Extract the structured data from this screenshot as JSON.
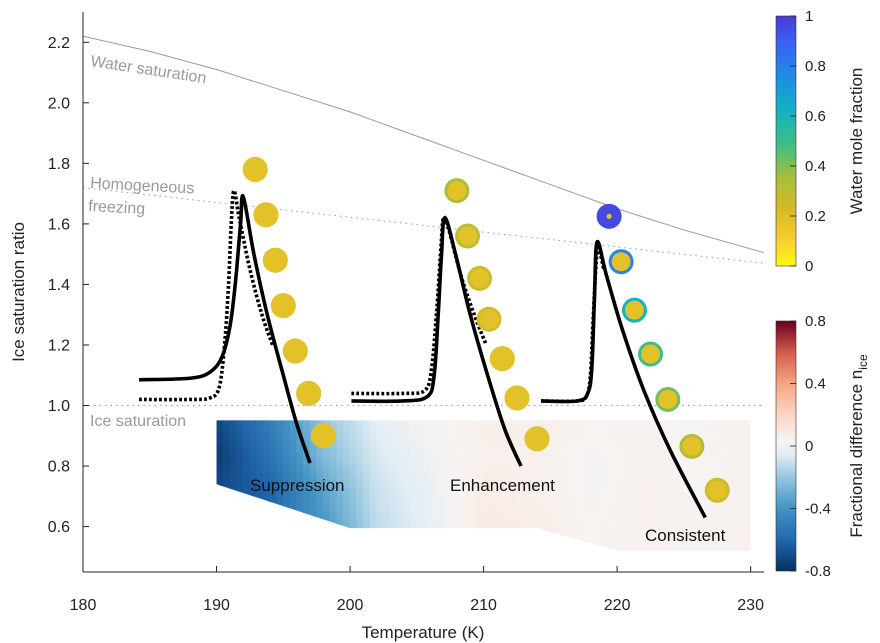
{
  "chart_data": {
    "type": "scatter",
    "xlabel": "Temperature (K)",
    "ylabel": "Ice saturation ratio",
    "xlim": [
      180,
      231
    ],
    "ylim": [
      0.45,
      2.3
    ],
    "x_ticks": [
      180,
      190,
      200,
      210,
      220,
      230
    ],
    "x_tick_labels": [
      "180",
      "190",
      "200",
      "210",
      "220",
      "230"
    ],
    "y_ticks": [
      0.6,
      0.8,
      1.0,
      1.2,
      1.4,
      1.6,
      1.8,
      2.0,
      2.2
    ],
    "y_tick_labels": [
      "0.6",
      "0.8",
      "1.0",
      "1.2",
      "1.4",
      "1.6",
      "1.8",
      "2.0",
      "2.2"
    ],
    "grid": false,
    "reference_lines": [
      {
        "label": "Water saturation",
        "points": [
          [
            180,
            2.22
          ],
          [
            185,
            2.17
          ],
          [
            190,
            2.11
          ],
          [
            195,
            2.04
          ],
          [
            200,
            1.97
          ],
          [
            205,
            1.89
          ],
          [
            210,
            1.81
          ],
          [
            215,
            1.73
          ],
          [
            220,
            1.65
          ],
          [
            225,
            1.58
          ],
          [
            231,
            1.505
          ]
        ]
      },
      {
        "label_lines": [
          "Homogeneous",
          "freezing"
        ],
        "points": [
          [
            180,
            1.72
          ],
          [
            231,
            1.47
          ]
        ]
      },
      {
        "label": "Ice saturation",
        "points": [
          [
            180,
            1.0
          ],
          [
            231,
            1.0
          ]
        ]
      }
    ],
    "annotations": [
      "Suppression",
      "Enhancement",
      "Consistent"
    ],
    "series": [
      {
        "name": "",
        "style": "solid",
        "x": [
          184.2,
          188,
          189.5,
          190.4,
          191.0,
          191.4,
          191.8,
          192.0,
          192.8,
          193.8,
          195.0,
          196.0,
          197.0
        ],
        "y": [
          1.085,
          1.09,
          1.11,
          1.16,
          1.26,
          1.4,
          1.6,
          1.69,
          1.5,
          1.3,
          1.1,
          0.94,
          0.81
        ]
      },
      {
        "name": "",
        "style": "dotted",
        "x": [
          184.2,
          188,
          189.5,
          190.2,
          190.6,
          190.9,
          191.1,
          191.3,
          191.7,
          192.5,
          193.4,
          194.2
        ],
        "y": [
          1.02,
          1.02,
          1.025,
          1.06,
          1.2,
          1.4,
          1.6,
          1.71,
          1.62,
          1.45,
          1.3,
          1.2
        ]
      },
      {
        "name": "",
        "style": "solid",
        "x": [
          200.1,
          204,
          205.8,
          206.3,
          206.6,
          206.85,
          207.1,
          207.9,
          209.0,
          210.3,
          211.6,
          212.8
        ],
        "y": [
          1.015,
          1.015,
          1.03,
          1.1,
          1.3,
          1.5,
          1.62,
          1.5,
          1.3,
          1.1,
          0.92,
          0.8
        ]
      },
      {
        "name": "",
        "style": "dotted",
        "x": [
          200.1,
          204,
          205.6,
          206.1,
          206.5,
          206.8,
          207.0,
          207.4,
          208.3,
          209.3,
          210.2
        ],
        "y": [
          1.04,
          1.04,
          1.05,
          1.12,
          1.32,
          1.52,
          1.62,
          1.58,
          1.43,
          1.3,
          1.2
        ]
      },
      {
        "name": "",
        "style": "solid",
        "x": [
          214.3,
          217.0,
          217.8,
          218.1,
          218.3,
          218.5,
          219.2,
          220.4,
          222.0,
          224.0,
          226.6
        ],
        "y": [
          1.015,
          1.015,
          1.04,
          1.12,
          1.35,
          1.54,
          1.43,
          1.25,
          1.05,
          0.85,
          0.63
        ]
      },
      {
        "name": "",
        "style": "dotted",
        "x": [
          214.3,
          217.0,
          217.7,
          218.0,
          218.2,
          218.4,
          218.6,
          219.0
        ],
        "y": [
          1.015,
          1.015,
          1.03,
          1.1,
          1.28,
          1.45,
          1.52,
          1.45
        ]
      }
    ],
    "droplets": [
      {
        "x": 192.9,
        "y": 1.78,
        "water_fraction": 0.18,
        "core_fraction": 0.18
      },
      {
        "x": 193.7,
        "y": 1.63,
        "water_fraction": 0.18,
        "core_fraction": 0.18
      },
      {
        "x": 194.4,
        "y": 1.48,
        "water_fraction": 0.18,
        "core_fraction": 0.18
      },
      {
        "x": 195.0,
        "y": 1.33,
        "water_fraction": 0.18,
        "core_fraction": 0.18
      },
      {
        "x": 195.9,
        "y": 1.18,
        "water_fraction": 0.18,
        "core_fraction": 0.18
      },
      {
        "x": 196.9,
        "y": 1.04,
        "water_fraction": 0.18,
        "core_fraction": 0.18
      },
      {
        "x": 198.0,
        "y": 0.9,
        "water_fraction": 0.18,
        "core_fraction": 0.18
      },
      {
        "x": 208.0,
        "y": 1.71,
        "water_fraction": 0.35,
        "core_fraction": 0.18
      },
      {
        "x": 208.8,
        "y": 1.56,
        "water_fraction": 0.3,
        "core_fraction": 0.18
      },
      {
        "x": 209.7,
        "y": 1.42,
        "water_fraction": 0.26,
        "core_fraction": 0.18
      },
      {
        "x": 210.4,
        "y": 1.285,
        "water_fraction": 0.24,
        "core_fraction": 0.18
      },
      {
        "x": 211.4,
        "y": 1.155,
        "water_fraction": 0.22,
        "core_fraction": 0.18
      },
      {
        "x": 212.5,
        "y": 1.025,
        "water_fraction": 0.2,
        "core_fraction": 0.18
      },
      {
        "x": 214.0,
        "y": 0.89,
        "water_fraction": 0.18,
        "core_fraction": 0.18
      },
      {
        "x": 219.4,
        "y": 1.625,
        "water_fraction": 0.96,
        "core_fraction": 0.18
      },
      {
        "x": 220.3,
        "y": 1.475,
        "water_fraction": 0.78,
        "core_fraction": 0.18
      },
      {
        "x": 221.3,
        "y": 1.315,
        "water_fraction": 0.62,
        "core_fraction": 0.18
      },
      {
        "x": 222.5,
        "y": 1.17,
        "water_fraction": 0.5,
        "core_fraction": 0.18
      },
      {
        "x": 223.8,
        "y": 1.02,
        "water_fraction": 0.42,
        "core_fraction": 0.18
      },
      {
        "x": 225.6,
        "y": 0.865,
        "water_fraction": 0.33,
        "core_fraction": 0.18
      },
      {
        "x": 227.5,
        "y": 0.72,
        "water_fraction": 0.26,
        "core_fraction": 0.18
      }
    ],
    "heatmap": {
      "x_nodes": [
        190,
        194,
        198,
        202,
        206,
        210,
        214,
        218,
        222,
        226,
        230
      ],
      "y_nodes": [
        0.95,
        0.83,
        0.71,
        0.59,
        0.52
      ],
      "values": [
        [
          -0.72,
          -0.5,
          -0.2,
          -0.04,
          0.02,
          0.06,
          0.06,
          0.04,
          0.04,
          0.03,
          0.05
        ],
        [
          -0.76,
          -0.55,
          -0.25,
          -0.07,
          0.0,
          0.05,
          0.05,
          0.02,
          0.04,
          0.03,
          0.04
        ],
        [
          -0.7,
          -0.62,
          -0.35,
          -0.1,
          -0.02,
          0.07,
          0.05,
          0.02,
          0.05,
          0.03,
          0.04
        ],
        [
          -0.6,
          -0.55,
          -0.4,
          -0.12,
          -0.03,
          0.08,
          0.07,
          0.03,
          0.05,
          0.04,
          0.05
        ],
        [
          -0.6,
          -0.55,
          -0.4,
          -0.12,
          -0.03,
          0.07,
          0.06,
          0.03,
          0.05,
          0.04,
          0.05
        ]
      ],
      "boundary": [
        [
          190,
          0.955
        ],
        [
          230,
          0.955
        ],
        [
          230,
          0.52
        ],
        [
          220,
          0.52
        ],
        [
          214,
          0.595
        ],
        [
          200,
          0.595
        ],
        [
          190,
          0.74
        ]
      ]
    },
    "colorbars": [
      {
        "label": "Water mole fraction",
        "min": 0,
        "max": 1,
        "ticks": [
          0,
          0.2,
          0.4,
          0.6,
          0.8,
          1
        ],
        "tick_labels": [
          "0",
          "0.2",
          "0.4",
          "0.6",
          "0.8",
          "1"
        ],
        "colormap": "parula"
      },
      {
        "label": "Fractional difference n",
        "label_subscript": "ice",
        "min": -0.8,
        "max": 0.8,
        "ticks": [
          -0.8,
          -0.4,
          0,
          0.4,
          0.8
        ],
        "tick_labels": [
          "-0.8",
          "-0.4",
          "0",
          "0.4",
          "0.8"
        ],
        "colormap": "RdBu_r"
      }
    ]
  }
}
